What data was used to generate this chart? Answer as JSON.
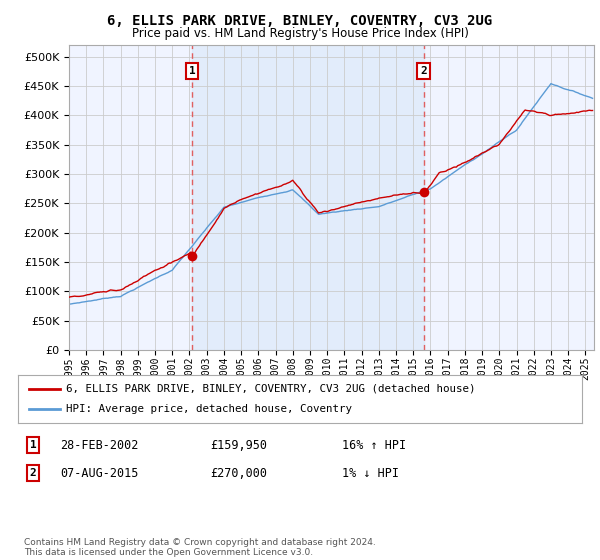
{
  "title": "6, ELLIS PARK DRIVE, BINLEY, COVENTRY, CV3 2UG",
  "subtitle": "Price paid vs. HM Land Registry's House Price Index (HPI)",
  "ylim": [
    0,
    520000
  ],
  "yticks": [
    0,
    50000,
    100000,
    150000,
    200000,
    250000,
    300000,
    350000,
    400000,
    450000,
    500000
  ],
  "year_start": 1995,
  "year_end": 2025,
  "transaction1_date": "28-FEB-2002",
  "transaction1_price": 159950,
  "transaction1_hpi": "16% ↑ HPI",
  "transaction1_x": 2002.16,
  "transaction2_date": "07-AUG-2015",
  "transaction2_price": 270000,
  "transaction2_hpi": "1% ↓ HPI",
  "transaction2_x": 2015.6,
  "legend_label1": "6, ELLIS PARK DRIVE, BINLEY, COVENTRY, CV3 2UG (detached house)",
  "legend_label2": "HPI: Average price, detached house, Coventry",
  "line_color_red": "#cc0000",
  "line_color_blue": "#5b9bd5",
  "annotation_color": "#cc0000",
  "vline_color": "#e06060",
  "shade_color": "#ddeeff",
  "background_color": "#ffffff",
  "plot_bg_color": "#f0f4ff",
  "grid_color": "#cccccc",
  "footer_text": "Contains HM Land Registry data © Crown copyright and database right 2024.\nThis data is licensed under the Open Government Licence v3.0."
}
